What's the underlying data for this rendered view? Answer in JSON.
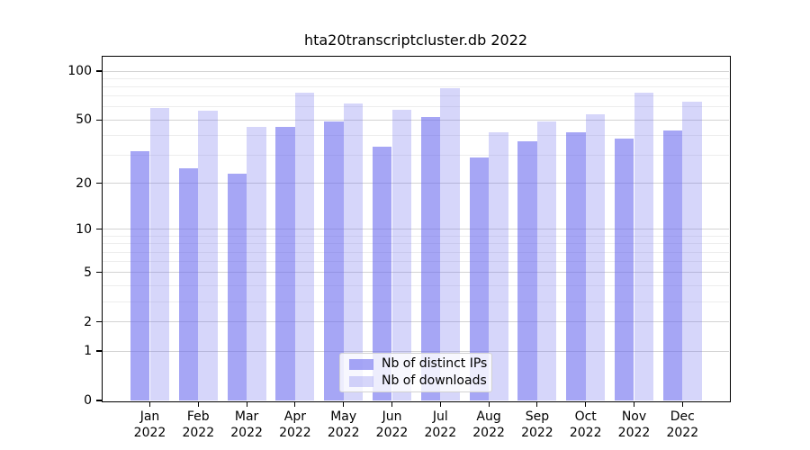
{
  "chart_data": {
    "type": "bar",
    "title": "hta20transcriptcluster.db 2022",
    "categories": [
      "Jan 2022",
      "Feb 2022",
      "Mar 2022",
      "Apr 2022",
      "May 2022",
      "Jun 2022",
      "Jul 2022",
      "Aug 2022",
      "Sep 2022",
      "Oct 2022",
      "Nov 2022",
      "Dec 2022"
    ],
    "series": [
      {
        "name": "Nb of distinct IPs",
        "color": "rgba(102,102,238,0.58)",
        "values": [
          32,
          25,
          23,
          45,
          49,
          34,
          52,
          29,
          37,
          42,
          38,
          43
        ]
      },
      {
        "name": "Nb of downloads",
        "color": "rgba(102,102,238,0.27)",
        "values": [
          59,
          57,
          45,
          74,
          63,
          58,
          78,
          42,
          49,
          54,
          74,
          65
        ]
      }
    ],
    "yscale": "log1p",
    "ylim": [
      0,
      123
    ],
    "yticks": [
      100,
      50,
      20,
      10,
      5,
      2,
      1,
      0
    ],
    "minor_gridlines": [
      90,
      80,
      70,
      60,
      40,
      30,
      9,
      8,
      7,
      6,
      4,
      3
    ],
    "grid": true,
    "legend_position": "bottom-center",
    "colors": {
      "grid_major": "#d3d3d3",
      "grid_minor": "#ededed",
      "spine": "#000000",
      "text": "#000000",
      "background": "#ffffff"
    }
  }
}
